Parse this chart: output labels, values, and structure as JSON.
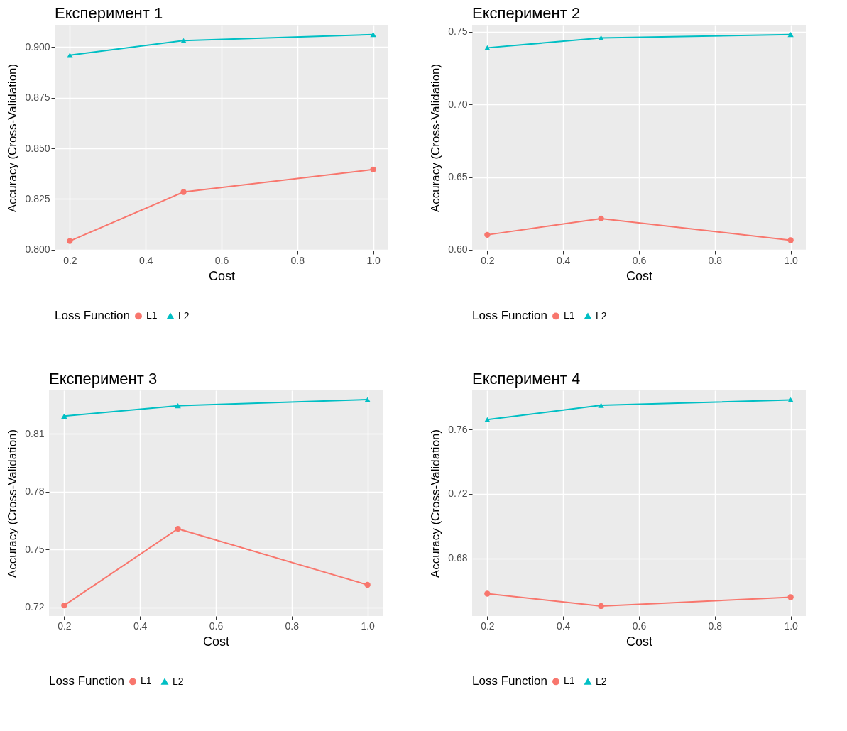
{
  "chart_data": [
    {
      "type": "line",
      "title": "Експеримент 1",
      "xlabel": "Cost",
      "ylabel": "Accuracy (Cross-Validation)",
      "legend_title": "Loss Function",
      "legend": "bottom",
      "grid": true,
      "x": [
        0.2,
        0.5,
        1.0
      ],
      "xlim": [
        0.16,
        1.04
      ],
      "xticks": [
        {
          "value": 0.2,
          "label": "0.2"
        },
        {
          "value": 0.4,
          "label": "0.4"
        },
        {
          "value": 0.6,
          "label": "0.6"
        },
        {
          "value": 0.8,
          "label": "0.8"
        },
        {
          "value": 1.0,
          "label": "1.0"
        }
      ],
      "ylim": [
        0.7996,
        0.911
      ],
      "yticks": [
        {
          "value": 0.8,
          "label": "0.800"
        },
        {
          "value": 0.825,
          "label": "0.825"
        },
        {
          "value": 0.85,
          "label": "0.850"
        },
        {
          "value": 0.875,
          "label": "0.875"
        },
        {
          "value": 0.9,
          "label": "0.900"
        }
      ],
      "series": [
        {
          "name": "L1",
          "color": "#f8766d",
          "marker": "circle",
          "values": [
            0.8043,
            0.8285,
            0.8396
          ]
        },
        {
          "name": "L2",
          "color": "#00bfc4",
          "marker": "triangle",
          "values": [
            0.896,
            0.9032,
            0.9062
          ]
        }
      ]
    },
    {
      "type": "line",
      "title": "Експеримент 2",
      "xlabel": "Cost",
      "ylabel": "Accuracy (Cross-Validation)",
      "legend_title": "Loss Function",
      "legend": "bottom",
      "grid": true,
      "x": [
        0.2,
        0.5,
        1.0
      ],
      "xlim": [
        0.16,
        1.04
      ],
      "xticks": [
        {
          "value": 0.2,
          "label": "0.2"
        },
        {
          "value": 0.4,
          "label": "0.4"
        },
        {
          "value": 0.6,
          "label": "0.6"
        },
        {
          "value": 0.8,
          "label": "0.8"
        },
        {
          "value": 1.0,
          "label": "1.0"
        }
      ],
      "ylim": [
        0.5995,
        0.7547
      ],
      "yticks": [
        {
          "value": 0.6,
          "label": "0.60"
        },
        {
          "value": 0.65,
          "label": "0.65"
        },
        {
          "value": 0.7,
          "label": "0.70"
        },
        {
          "value": 0.75,
          "label": "0.75"
        }
      ],
      "series": [
        {
          "name": "L1",
          "color": "#f8766d",
          "marker": "circle",
          "values": [
            0.6103,
            0.6215,
            0.6066
          ]
        },
        {
          "name": "L2",
          "color": "#00bfc4",
          "marker": "triangle",
          "values": [
            0.7389,
            0.7457,
            0.748
          ]
        }
      ]
    },
    {
      "type": "line",
      "title": "Експеримент 3",
      "xlabel": "Cost",
      "ylabel": "Accuracy (Cross-Validation)",
      "legend_title": "Loss Function",
      "legend": "bottom",
      "grid": true,
      "x": [
        0.2,
        0.5,
        1.0
      ],
      "xlim": [
        0.16,
        1.04
      ],
      "xticks": [
        {
          "value": 0.2,
          "label": "0.2"
        },
        {
          "value": 0.4,
          "label": "0.4"
        },
        {
          "value": 0.6,
          "label": "0.6"
        },
        {
          "value": 0.8,
          "label": "0.8"
        },
        {
          "value": 1.0,
          "label": "1.0"
        }
      ],
      "ylim": [
        0.7154,
        0.8326
      ],
      "yticks": [
        0.72,
        0.75,
        0.78,
        0.81
      ],
      "series": [
        {
          "name": "L1",
          "color": "#f8766d",
          "marker": "circle",
          "values": [
            0.7209,
            0.7607,
            0.7316
          ]
        },
        {
          "name": "L2",
          "color": "#00bfc4",
          "marker": "triangle",
          "values": [
            0.8192,
            0.8246,
            0.8278
          ]
        }
      ]
    },
    {
      "type": "line",
      "title": "Експеримент 4",
      "xlabel": "Cost",
      "ylabel": "Accuracy (Cross-Validation)",
      "legend_title": "Loss Function",
      "legend": "bottom",
      "grid": true,
      "x": [
        0.2,
        0.5,
        1.0
      ],
      "xlim": [
        0.16,
        1.04
      ],
      "xticks": [
        {
          "value": 0.2,
          "label": "0.2"
        },
        {
          "value": 0.4,
          "label": "0.4"
        },
        {
          "value": 0.6,
          "label": "0.6"
        },
        {
          "value": 0.8,
          "label": "0.8"
        },
        {
          "value": 1.0,
          "label": "1.0"
        }
      ],
      "ylim": [
        0.6441,
        0.7843
      ],
      "yticks": [
        0.68,
        0.72,
        0.76
      ],
      "series": [
        {
          "name": "L1",
          "color": "#f8766d",
          "marker": "circle",
          "values": [
            0.658,
            0.6503,
            0.6558
          ]
        },
        {
          "name": "L2",
          "color": "#00bfc4",
          "marker": "triangle",
          "values": [
            0.7661,
            0.775,
            0.7784
          ]
        }
      ]
    }
  ]
}
